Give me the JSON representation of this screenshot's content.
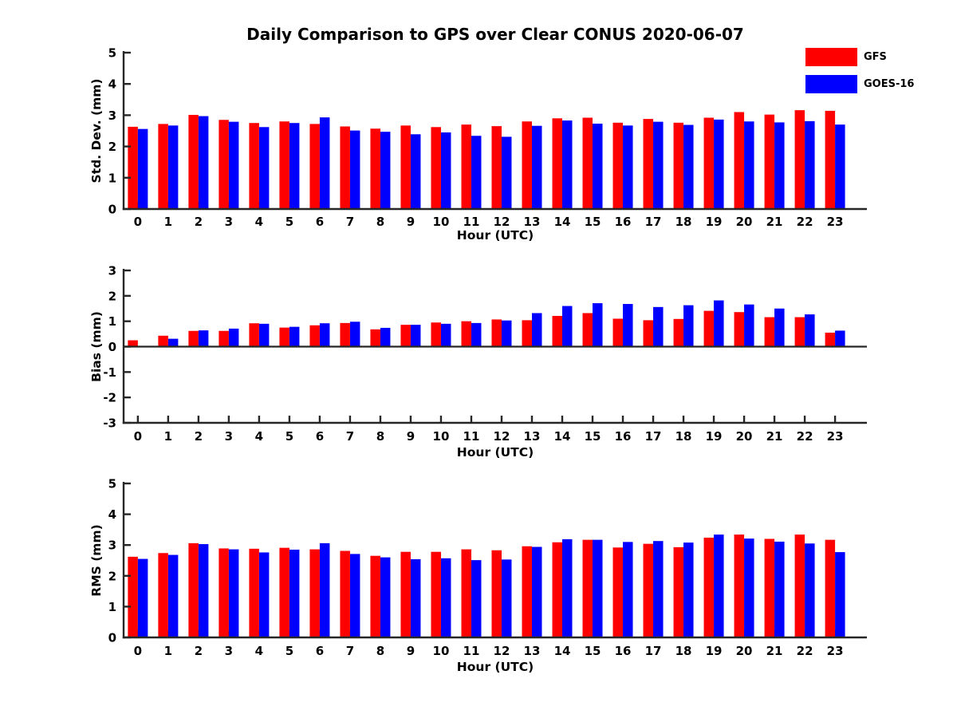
{
  "page_title": "Daily Comparison to GPS over Clear CONUS 2020-06-07",
  "legend": {
    "items": [
      {
        "label": "GFS",
        "color": "#ff0000"
      },
      {
        "label": "GOES-16",
        "color": "#0000ff"
      }
    ]
  },
  "chart_data": [
    {
      "type": "bar",
      "title": "Daily Comparison to GPS over Clear CONUS 2020-06-07",
      "ylabel": "Std. Dev. (mm)",
      "xlabel": "Hour (UTC)",
      "ylim": [
        0,
        5
      ],
      "yticks": [
        0,
        1,
        2,
        3,
        4,
        5
      ],
      "grid": false,
      "legend_position": "top-right",
      "categories": [
        "0",
        "1",
        "2",
        "3",
        "4",
        "5",
        "6",
        "7",
        "8",
        "9",
        "10",
        "11",
        "12",
        "13",
        "14",
        "15",
        "16",
        "17",
        "18",
        "19",
        "20",
        "21",
        "22",
        "23"
      ],
      "series": [
        {
          "name": "GFS",
          "color": "#ff0000",
          "values": [
            2.63,
            2.72,
            3.01,
            2.85,
            2.75,
            2.8,
            2.72,
            2.64,
            2.57,
            2.67,
            2.62,
            2.7,
            2.65,
            2.8,
            2.9,
            2.92,
            2.76,
            2.88,
            2.76,
            2.92,
            3.1,
            3.02,
            3.16,
            3.14
          ]
        },
        {
          "name": "GOES-16",
          "color": "#0000ff",
          "values": [
            2.56,
            2.67,
            2.97,
            2.79,
            2.62,
            2.75,
            2.93,
            2.51,
            2.47,
            2.39,
            2.45,
            2.34,
            2.31,
            2.66,
            2.83,
            2.73,
            2.67,
            2.79,
            2.69,
            2.86,
            2.8,
            2.77,
            2.81,
            2.7
          ]
        }
      ]
    },
    {
      "type": "bar",
      "ylabel": "Bias (mm)",
      "xlabel": "Hour (UTC)",
      "ylim": [
        -3,
        3
      ],
      "yticks": [
        -3,
        -2,
        -1,
        0,
        1,
        2,
        3
      ],
      "grid": false,
      "categories": [
        "0",
        "1",
        "2",
        "3",
        "4",
        "5",
        "6",
        "7",
        "8",
        "9",
        "10",
        "11",
        "12",
        "13",
        "14",
        "15",
        "16",
        "17",
        "18",
        "19",
        "20",
        "21",
        "22",
        "23"
      ],
      "series": [
        {
          "name": "GFS",
          "color": "#ff0000",
          "values": [
            0.25,
            0.43,
            0.62,
            0.62,
            0.92,
            0.75,
            0.84,
            0.93,
            0.68,
            0.86,
            0.95,
            1.0,
            1.07,
            1.04,
            1.21,
            1.32,
            1.1,
            1.04,
            1.09,
            1.41,
            1.36,
            1.16,
            1.16,
            0.55
          ]
        },
        {
          "name": "GOES-16",
          "color": "#0000ff",
          "values": [
            0.02,
            0.31,
            0.64,
            0.71,
            0.9,
            0.78,
            0.92,
            0.98,
            0.74,
            0.86,
            0.9,
            0.93,
            1.03,
            1.32,
            1.6,
            1.71,
            1.68,
            1.56,
            1.63,
            1.82,
            1.66,
            1.5,
            1.27,
            0.63
          ]
        }
      ]
    },
    {
      "type": "bar",
      "ylabel": "RMS (mm)",
      "xlabel": "Hour (UTC)",
      "ylim": [
        0,
        5
      ],
      "yticks": [
        0,
        1,
        2,
        3,
        4,
        5
      ],
      "grid": false,
      "categories": [
        "0",
        "1",
        "2",
        "3",
        "4",
        "5",
        "6",
        "7",
        "8",
        "9",
        "10",
        "11",
        "12",
        "13",
        "14",
        "15",
        "16",
        "17",
        "18",
        "19",
        "20",
        "21",
        "22",
        "23"
      ],
      "series": [
        {
          "name": "GFS",
          "color": "#ff0000",
          "values": [
            2.62,
            2.74,
            3.06,
            2.89,
            2.88,
            2.91,
            2.86,
            2.81,
            2.65,
            2.78,
            2.78,
            2.86,
            2.83,
            2.96,
            3.09,
            3.17,
            2.92,
            3.04,
            2.93,
            3.24,
            3.34,
            3.2,
            3.34,
            3.17
          ]
        },
        {
          "name": "GOES-16",
          "color": "#0000ff",
          "values": [
            2.55,
            2.68,
            3.03,
            2.86,
            2.76,
            2.85,
            3.06,
            2.71,
            2.6,
            2.54,
            2.57,
            2.51,
            2.53,
            2.94,
            3.19,
            3.17,
            3.1,
            3.13,
            3.08,
            3.34,
            3.21,
            3.11,
            3.05,
            2.77
          ]
        }
      ]
    }
  ]
}
